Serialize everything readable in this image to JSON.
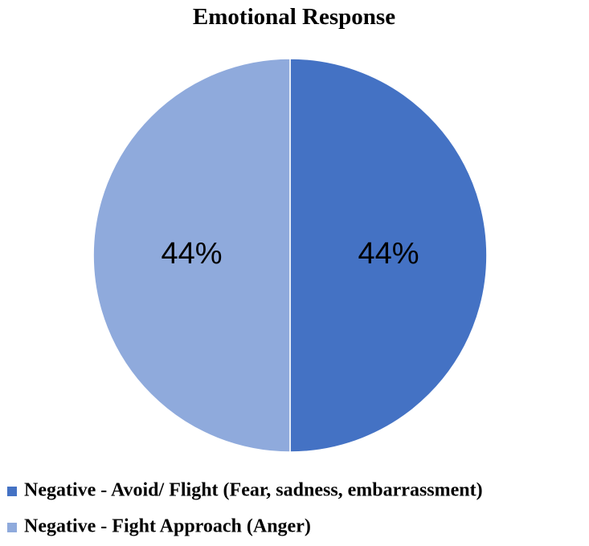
{
  "chart_data": {
    "type": "pie",
    "title": "Emotional Response",
    "categories": [
      "Negative - Avoid/ Flight (Fear, sadness, embarrassment)",
      "Negative - Fight Approach (Anger)"
    ],
    "values": [
      44,
      44
    ],
    "value_labels": [
      "44%",
      "44%"
    ],
    "colors": [
      "#4472c4",
      "#8faadc"
    ],
    "legend": "bottom"
  }
}
